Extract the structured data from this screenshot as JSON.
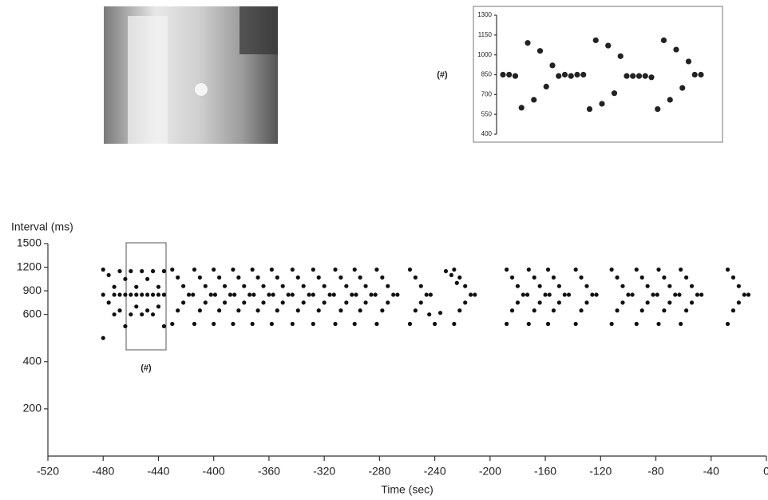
{
  "chart_data": [
    {
      "type": "scatter",
      "annotation": "(#)",
      "values": [
        850,
        850,
        840,
        600,
        1090,
        660,
        1030,
        760,
        920,
        840,
        850,
        840,
        850,
        850,
        590,
        1110,
        630,
        1070,
        710,
        990,
        840,
        840,
        840,
        840,
        830,
        590,
        1110,
        660,
        1040,
        750,
        950,
        850,
        850
      ],
      "color": "#222222",
      "ylim": [
        400,
        1300
      ],
      "yticks": [
        400,
        550,
        700,
        850,
        1000,
        1150,
        1300
      ]
    },
    {
      "type": "scatter",
      "annotation": "(#)",
      "xlabel": "Time (sec)",
      "ylabel": "Interval (ms)",
      "x": [
        -480,
        -480,
        -480,
        -476,
        -476,
        -472,
        -472,
        -472,
        -468,
        -468,
        -468,
        -464,
        -464,
        -464,
        -460,
        -460,
        -460,
        -456,
        -456,
        -456,
        -452,
        -452,
        -452,
        -448,
        -448,
        -448,
        -444,
        -444,
        -444,
        -440,
        -440,
        -440,
        -436,
        -436,
        -436,
        -430,
        -426,
        -422,
        -430,
        -426,
        -422,
        -418,
        -415,
        -414,
        -410,
        -406,
        -414,
        -410,
        -406,
        -402,
        -399,
        -400,
        -396,
        -392,
        -400,
        -396,
        -392,
        -388,
        -385,
        -386,
        -382,
        -378,
        -386,
        -382,
        -378,
        -374,
        -371,
        -372,
        -368,
        -364,
        -372,
        -368,
        -364,
        -360,
        -357,
        -358,
        -354,
        -350,
        -358,
        -354,
        -350,
        -346,
        -343,
        -343,
        -339,
        -335,
        -343,
        -339,
        -335,
        -331,
        -328,
        -328,
        -324,
        -320,
        -328,
        -324,
        -320,
        -316,
        -313,
        -312,
        -308,
        -304,
        -312,
        -308,
        -304,
        -300,
        -297,
        -298,
        -294,
        -290,
        -298,
        -294,
        -290,
        -286,
        -283,
        -282,
        -278,
        -274,
        -282,
        -278,
        -274,
        -270,
        -267,
        -258,
        -254,
        -250,
        -258,
        -254,
        -250,
        -246,
        -243,
        -226,
        -222,
        -218,
        -226,
        -222,
        -218,
        -214,
        -211,
        -188,
        -184,
        -180,
        -188,
        -184,
        -180,
        -176,
        -173,
        -172,
        -168,
        -164,
        -172,
        -168,
        -164,
        -160,
        -157,
        -158,
        -154,
        -150,
        -158,
        -154,
        -150,
        -146,
        -143,
        -138,
        -134,
        -130,
        -138,
        -134,
        -130,
        -126,
        -123,
        -112,
        -108,
        -104,
        -112,
        -108,
        -104,
        -100,
        -97,
        -94,
        -90,
        -86,
        -94,
        -90,
        -86,
        -82,
        -79,
        -78,
        -74,
        -70,
        -78,
        -74,
        -70,
        -66,
        -63,
        -62,
        -58,
        -54,
        -62,
        -58,
        -54,
        -50,
        -47,
        -28,
        -24,
        -20,
        -28,
        -24,
        -20,
        -16,
        -13,
        -240,
        -236,
        -244,
        -232,
        -228,
        -224
      ],
      "values": [
        850,
        1170,
        500,
        1100,
        750,
        850,
        950,
        600,
        1150,
        650,
        850,
        1050,
        850,
        550,
        850,
        1150,
        600,
        950,
        850,
        700,
        1150,
        850,
        600,
        1050,
        850,
        650,
        850,
        1150,
        600,
        950,
        850,
        700,
        1150,
        850,
        550,
        1170,
        1070,
        960,
        560,
        650,
        750,
        850,
        850,
        1170,
        1070,
        960,
        560,
        650,
        750,
        850,
        850,
        1170,
        1070,
        960,
        560,
        650,
        750,
        850,
        850,
        1170,
        1070,
        960,
        560,
        650,
        750,
        850,
        850,
        1170,
        1070,
        960,
        560,
        650,
        750,
        850,
        850,
        1170,
        1070,
        960,
        560,
        650,
        750,
        850,
        850,
        1170,
        1070,
        960,
        560,
        650,
        750,
        850,
        850,
        1170,
        1070,
        960,
        560,
        650,
        750,
        850,
        850,
        1170,
        1070,
        960,
        560,
        650,
        750,
        850,
        850,
        1170,
        1070,
        960,
        560,
        650,
        750,
        850,
        850,
        1170,
        1070,
        960,
        560,
        650,
        750,
        850,
        850,
        1170,
        1070,
        960,
        560,
        650,
        750,
        850,
        850,
        1170,
        1070,
        960,
        560,
        650,
        750,
        850,
        850,
        1170,
        1070,
        960,
        560,
        650,
        750,
        850,
        850,
        1170,
        1070,
        960,
        560,
        650,
        750,
        850,
        850,
        1170,
        1070,
        960,
        560,
        650,
        750,
        850,
        850,
        1170,
        1070,
        960,
        560,
        650,
        750,
        850,
        850,
        1170,
        1070,
        960,
        560,
        650,
        750,
        850,
        850,
        1170,
        1070,
        960,
        560,
        650,
        750,
        850,
        850,
        1170,
        1070,
        960,
        560,
        650,
        750,
        850,
        850,
        1170,
        1070,
        960,
        560,
        650,
        750,
        850,
        850,
        1170,
        1070,
        960,
        560,
        650,
        750,
        850,
        850,
        560,
        620,
        600,
        1150,
        1100,
        1000
      ],
      "color": "#111111",
      "xlim": [
        -520,
        0
      ],
      "xticks": [
        -520,
        -480,
        -440,
        -400,
        -360,
        -320,
        -280,
        -240,
        -200,
        -160,
        -120,
        -80,
        -40,
        0
      ],
      "ylim": [
        0,
        1500
      ],
      "yticks": [
        200,
        400,
        600,
        900,
        1200,
        1500
      ]
    }
  ]
}
